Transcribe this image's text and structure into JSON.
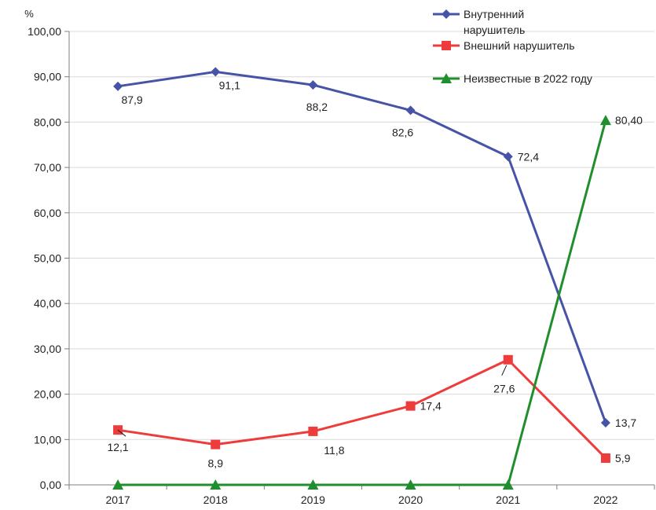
{
  "chart_data": {
    "type": "line",
    "categories": [
      "2017",
      "2018",
      "2019",
      "2020",
      "2021",
      "2022"
    ],
    "y_unit": "%",
    "ylim": [
      0,
      100
    ],
    "y_step": 10,
    "y_tick_labels": [
      "0,00",
      "10,00",
      "20,00",
      "30,00",
      "40,00",
      "50,00",
      "60,00",
      "70,00",
      "80,00",
      "90,00",
      "100,00"
    ],
    "grid": true,
    "legend_position": "top-right",
    "series": [
      {
        "name": "Внутренний нарушитель",
        "color": "#4653a6",
        "marker": "diamond",
        "values": [
          87.9,
          91.1,
          88.2,
          82.6,
          72.4,
          13.7
        ],
        "labels": [
          "87,9",
          "91,1",
          "88,2",
          "82,6",
          "72,4",
          "13,7"
        ]
      },
      {
        "name": "Внешний нарушитель",
        "color": "#ee3b3b",
        "marker": "square",
        "values": [
          12.1,
          8.9,
          11.8,
          17.4,
          27.6,
          5.9
        ],
        "labels": [
          "12,1",
          "8,9",
          "11,8",
          "17,4",
          "27,6",
          "5,9"
        ]
      },
      {
        "name": "Неизвестные в 2022 году",
        "color": "#1f8f2e",
        "marker": "triangle",
        "values": [
          0,
          0,
          0,
          0,
          0,
          80.4
        ],
        "labels": [
          "",
          "",
          "",
          "",
          "",
          "80,40"
        ]
      }
    ]
  }
}
